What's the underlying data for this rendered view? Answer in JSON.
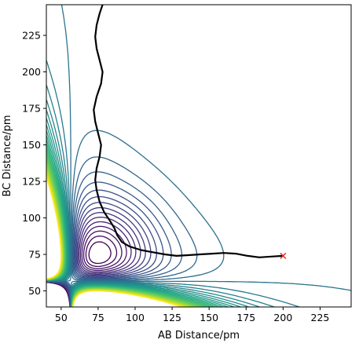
{
  "chart_data": {
    "type": "contour",
    "xlabel": "AB Distance/pm",
    "ylabel": "BC Distance/pm",
    "xlim": [
      40,
      246
    ],
    "ylim": [
      39,
      246
    ],
    "xticks": [
      50,
      75,
      100,
      125,
      150,
      175,
      200,
      225
    ],
    "yticks": [
      50,
      75,
      100,
      125,
      150,
      175,
      200,
      225
    ],
    "grid": false,
    "colormap": "viridis",
    "contour_levels": 40,
    "trajectory": {
      "color": "#000000",
      "points": [
        [
          200,
          74
        ],
        [
          192,
          73.5
        ],
        [
          184,
          73
        ],
        [
          176,
          74
        ],
        [
          168,
          75.5
        ],
        [
          160,
          76
        ],
        [
          152,
          75.5
        ],
        [
          144,
          75
        ],
        [
          136,
          74.5
        ],
        [
          128,
          74
        ],
        [
          120,
          75
        ],
        [
          112,
          76.5
        ],
        [
          104,
          78
        ],
        [
          96,
          80.5
        ],
        [
          91,
          83.5
        ],
        [
          88,
          88
        ],
        [
          86,
          93
        ],
        [
          83,
          98
        ],
        [
          79,
          104
        ],
        [
          76,
          111
        ],
        [
          74,
          119
        ],
        [
          73,
          126
        ],
        [
          74,
          134
        ],
        [
          76,
          142
        ],
        [
          77,
          150
        ],
        [
          75,
          158
        ],
        [
          73,
          166
        ],
        [
          72,
          174
        ],
        [
          74,
          183
        ],
        [
          77,
          192
        ],
        [
          78,
          200
        ],
        [
          76,
          208
        ],
        [
          74,
          216
        ],
        [
          73,
          224
        ],
        [
          74,
          232
        ],
        [
          76,
          240
        ],
        [
          78,
          246
        ]
      ]
    },
    "end_marker": {
      "x": 200,
      "y": 74,
      "symbol": "x",
      "color": "#e0281a"
    }
  }
}
